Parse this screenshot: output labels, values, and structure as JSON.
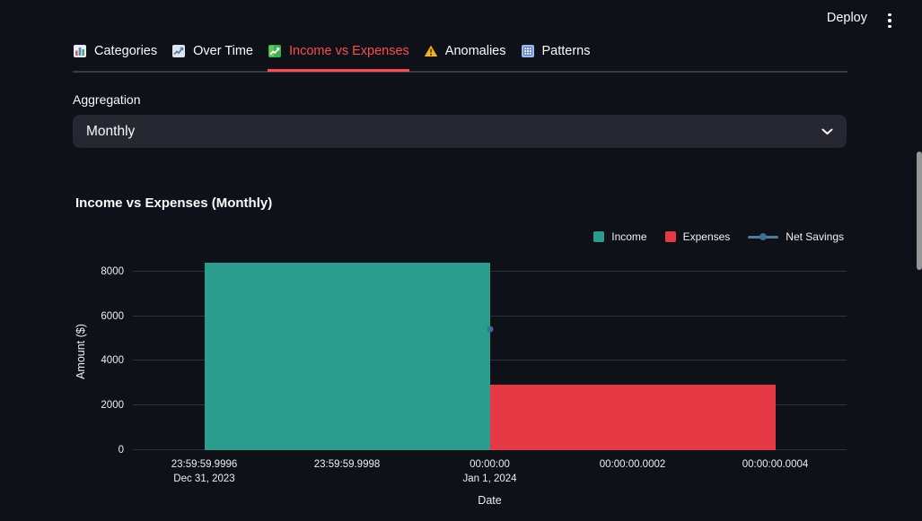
{
  "header": {
    "deploy_label": "Deploy"
  },
  "tabs": {
    "active_color": "#ff4b4b",
    "items": [
      {
        "label": "Categories",
        "icon": "bar-chart-emoji-icon",
        "active": false
      },
      {
        "label": "Over Time",
        "icon": "line-chart-emoji-icon",
        "active": false
      },
      {
        "label": "Income vs Expenses",
        "icon": "chart-increasing-emoji-icon",
        "active": true
      },
      {
        "label": "Anomalies",
        "icon": "warning-emoji-icon",
        "active": false
      },
      {
        "label": "Patterns",
        "icon": "grid-emoji-icon",
        "active": false
      }
    ]
  },
  "controls": {
    "aggregation_label": "Aggregation",
    "aggregation_value": "Monthly"
  },
  "chart_data": {
    "type": "bar",
    "title": "Income vs Expenses (Monthly)",
    "xlabel": "Date",
    "ylabel": "Amount ($)",
    "ylim": [
      0,
      8600
    ],
    "yticks": [
      0,
      2000,
      4000,
      6000,
      8000
    ],
    "grid": true,
    "legend_position": "top-right",
    "xticks": [
      {
        "pos": 0.1,
        "line1": "23:59:59.9996",
        "line2": "Dec 31, 2023"
      },
      {
        "pos": 0.3,
        "line1": "23:59:59.9998",
        "line2": ""
      },
      {
        "pos": 0.5,
        "line1": "00:00:00",
        "line2": "Jan 1, 2024"
      },
      {
        "pos": 0.7,
        "line1": "00:00:00.0002",
        "line2": ""
      },
      {
        "pos": 0.9,
        "line1": "00:00:00.0004",
        "line2": ""
      }
    ],
    "series": [
      {
        "name": "Income",
        "type": "bar",
        "color": "#2a9d8f",
        "value": 8380,
        "x_span": [
          0.1,
          0.5
        ],
        "x_center_label": "Dec 31, 2023 23:59:59.9998"
      },
      {
        "name": "Expenses",
        "type": "bar",
        "color": "#e63946",
        "value": 2940,
        "x_span": [
          0.5,
          0.9
        ],
        "x_center_label": "Jan 1, 2024 00:00:00.0002"
      },
      {
        "name": "Net Savings",
        "type": "line",
        "color": "#4d7ca3",
        "marker_color": "#3f6e92",
        "points": [
          {
            "x": 0.5,
            "value": 5440,
            "x_label": "Jan 1, 2024 00:00:00"
          }
        ]
      }
    ]
  }
}
